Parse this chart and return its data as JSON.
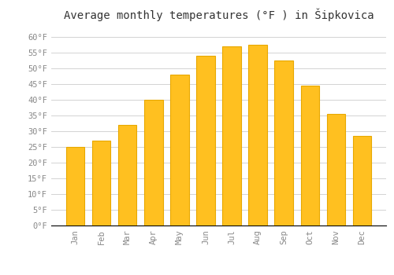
{
  "title": "Average monthly temperatures (°F ) in Šipkovica",
  "months": [
    "Jan",
    "Feb",
    "Mar",
    "Apr",
    "May",
    "Jun",
    "Jul",
    "Aug",
    "Sep",
    "Oct",
    "Nov",
    "Dec"
  ],
  "values": [
    25,
    27,
    32,
    40,
    48,
    54,
    57,
    57.5,
    52.5,
    44.5,
    35.5,
    28.5
  ],
  "bar_color": "#FFC020",
  "bar_edge_color": "#E8A800",
  "background_color": "#FFFFFF",
  "plot_bg_color": "#FFFFFF",
  "grid_color": "#CCCCCC",
  "ylim": [
    0,
    63
  ],
  "yticks": [
    0,
    5,
    10,
    15,
    20,
    25,
    30,
    35,
    40,
    45,
    50,
    55,
    60
  ],
  "title_fontsize": 10,
  "tick_fontsize": 7.5,
  "font_family": "monospace"
}
